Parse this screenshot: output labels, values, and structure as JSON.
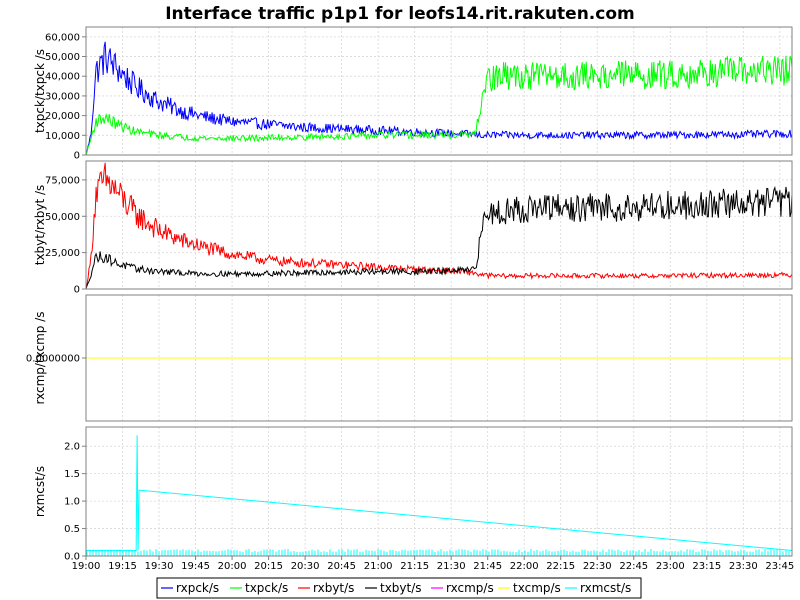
{
  "chart_data": {
    "type": "line",
    "title": "Interface traffic p1p1 for leofs14.rit.rakuten.com",
    "x_ticks": [
      "19:00",
      "19:15",
      "19:30",
      "19:45",
      "20:00",
      "20:15",
      "20:30",
      "20:45",
      "21:00",
      "21:15",
      "21:30",
      "21:45",
      "22:00",
      "22:15",
      "22:30",
      "22:45",
      "23:00",
      "23:15",
      "23:30",
      "23:45"
    ],
    "x_range_minutes": [
      0,
      290
    ],
    "panels": [
      {
        "ylabel": "txpck/txpck /s",
        "ylim": [
          0,
          65000
        ],
        "yticks": [
          0,
          10000,
          20000,
          30000,
          40000,
          50000,
          60000
        ],
        "ytick_labels": [
          "0",
          "10,000",
          "20,000",
          "30,000",
          "40,000",
          "50,000",
          "60,000"
        ],
        "series": [
          {
            "name": "rxpck/s",
            "color": "#0000ff",
            "x": [
              0,
              2,
              4,
              8,
              12,
              20,
              30,
              40,
              50,
              60,
              70,
              80,
              90,
              100,
              110,
              120,
              130,
              140,
              150,
              160,
              162,
              170,
              180,
              190,
              200,
              210,
              220,
              230,
              240,
              250,
              260,
              270,
              280,
              290
            ],
            "y": [
              0,
              10000,
              42000,
              50000,
              45000,
              35000,
              27000,
              22000,
              19000,
              17000,
              16000,
              15000,
              14000,
              13500,
              13000,
              12500,
              12000,
              11500,
              11000,
              10500,
              10000,
              10200,
              10000,
              10100,
              10000,
              10200,
              10000,
              10100,
              10200,
              10300,
              10400,
              10500,
              10600,
              10800
            ]
          },
          {
            "name": "txpck/s",
            "color": "#00ff00",
            "x": [
              0,
              2,
              4,
              8,
              12,
              20,
              30,
              40,
              50,
              60,
              70,
              80,
              90,
              100,
              110,
              120,
              130,
              140,
              150,
              160,
              162,
              164,
              170,
              180,
              190,
              200,
              210,
              220,
              230,
              240,
              250,
              260,
              270,
              280,
              290
            ],
            "y": [
              0,
              8000,
              17000,
              19000,
              16000,
              12000,
              10000,
              9000,
              8500,
              8500,
              8500,
              9000,
              9000,
              9500,
              9500,
              10000,
              10000,
              10000,
              10000,
              10500,
              24000,
              37000,
              40000,
              40000,
              40500,
              40000,
              40500,
              41000,
              40500,
              41000,
              41500,
              42000,
              42500,
              43000,
              43000
            ]
          }
        ]
      },
      {
        "ylabel": "txbyt/rxbyt /s",
        "ylim": [
          0,
          88000
        ],
        "yticks": [
          0,
          25000,
          50000,
          75000
        ],
        "ytick_labels": [
          "0",
          "25,000",
          "50,000",
          "75,000"
        ],
        "series": [
          {
            "name": "rxbyt/s",
            "color": "#ff0000",
            "x": [
              0,
              2,
              4,
              8,
              12,
              20,
              30,
              40,
              50,
              60,
              70,
              80,
              90,
              100,
              110,
              120,
              130,
              140,
              150,
              160,
              162,
              170,
              180,
              190,
              200,
              210,
              220,
              230,
              240,
              250,
              260,
              270,
              280,
              290
            ],
            "y": [
              0,
              20000,
              65000,
              75000,
              68000,
              52000,
              40000,
              33000,
              28000,
              24000,
              21000,
              19000,
              18000,
              17000,
              16000,
              15000,
              14000,
              13000,
              12500,
              11000,
              9500,
              9000,
              9000,
              9200,
              9000,
              9200,
              9100,
              9000,
              9200,
              9300,
              9400,
              9500,
              9600,
              9800
            ]
          },
          {
            "name": "txbyt/s",
            "color": "#000000",
            "x": [
              0,
              2,
              4,
              8,
              12,
              20,
              30,
              40,
              50,
              60,
              70,
              80,
              90,
              100,
              110,
              120,
              130,
              140,
              150,
              160,
              162,
              164,
              170,
              180,
              190,
              200,
              210,
              220,
              230,
              240,
              250,
              260,
              270,
              280,
              290
            ],
            "y": [
              0,
              10000,
              22000,
              22000,
              18000,
              14000,
              12000,
              11000,
              10500,
              10500,
              10500,
              11000,
              11000,
              11500,
              11500,
              12000,
              12000,
              12000,
              12500,
              13000,
              35000,
              52000,
              54000,
              55000,
              55500,
              55000,
              56000,
              56500,
              57000,
              57500,
              58000,
              58500,
              59000,
              60000,
              60000
            ]
          }
        ]
      },
      {
        "ylabel": "rxcmp/txcmp /s",
        "ylim": [
          -1,
          1
        ],
        "yticks": [
          0
        ],
        "ytick_labels": [
          "0.0000000"
        ],
        "series": [
          {
            "name": "rxcmp/s",
            "color": "#ff00ff",
            "x": [
              0,
              290
            ],
            "y": [
              0,
              0
            ]
          },
          {
            "name": "txcmp/s",
            "color": "#ffff00",
            "x": [
              0,
              290
            ],
            "y": [
              0,
              0
            ]
          }
        ]
      },
      {
        "ylabel": "rxmcst/s",
        "ylim": [
          0,
          2.35
        ],
        "yticks": [
          0,
          0.5,
          1.0,
          1.5,
          2.0
        ],
        "ytick_labels": [
          "0.0",
          "0.5",
          "1.0",
          "1.5",
          "2.0"
        ],
        "series": [
          {
            "name": "rxmcst/s",
            "color": "#00ffff",
            "x": [
              0,
              20.6,
              21,
              21.4,
              21.8,
              290
            ],
            "y": [
              0.1,
              0.1,
              2.2,
              0.1,
              1.2,
              0.1
            ]
          }
        ]
      }
    ],
    "legend": {
      "placement": "bottom",
      "entries": [
        {
          "label": "rxpck/s",
          "color": "#0000ff"
        },
        {
          "label": "txpck/s",
          "color": "#00ff00"
        },
        {
          "label": "rxbyt/s",
          "color": "#ff0000"
        },
        {
          "label": "txbyt/s",
          "color": "#000000"
        },
        {
          "label": "rxcmp/s",
          "color": "#ff00ff"
        },
        {
          "label": "txcmp/s",
          "color": "#ffff00"
        },
        {
          "label": "rxmcst/s",
          "color": "#00ffff"
        }
      ]
    },
    "grid": true
  }
}
